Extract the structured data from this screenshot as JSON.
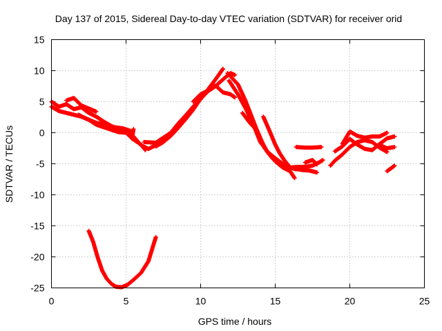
{
  "chart_data": {
    "type": "scatter",
    "title": "Day 137 of 2015, Sidereal Day-to-day VTEC variation (SDTVAR) for receiver orid",
    "xlabel": "GPS time / hours",
    "ylabel": "SDTVAR / TECUs",
    "xlim": [
      0,
      25
    ],
    "ylim": [
      -25,
      15
    ],
    "xticks": [
      0,
      5,
      10,
      15,
      20,
      25
    ],
    "yticks": [
      -25,
      -20,
      -15,
      -10,
      -5,
      0,
      5,
      10,
      15
    ],
    "grid": true,
    "marker": "+",
    "color": "#ff0000",
    "series": [
      {
        "name": "track-a",
        "points": [
          [
            0,
            5
          ],
          [
            0.5,
            4.2
          ],
          [
            1,
            4.6
          ],
          [
            1.5,
            3.8
          ],
          [
            2,
            4.1
          ],
          [
            2.5,
            3.2
          ],
          [
            3,
            2.6
          ],
          [
            3.5,
            1.8
          ],
          [
            4,
            1.1
          ],
          [
            4.5,
            0.6
          ],
          [
            5,
            0.4
          ],
          [
            5.5,
            -0.6
          ],
          [
            6,
            -2
          ],
          [
            6.5,
            -2.6
          ],
          [
            7,
            -2
          ]
        ]
      },
      {
        "name": "track-b",
        "points": [
          [
            0,
            4.2
          ],
          [
            0.5,
            3.5
          ],
          [
            1,
            3.2
          ],
          [
            1.5,
            2.9
          ],
          [
            2,
            2.6
          ],
          [
            2.5,
            2.1
          ],
          [
            3,
            1.3
          ],
          [
            3.5,
            0.9
          ],
          [
            4,
            0.5
          ],
          [
            4.5,
            0.1
          ],
          [
            5,
            0
          ],
          [
            5.5,
            -1.1
          ],
          [
            6,
            -1.9
          ],
          [
            6.3,
            -2.8
          ]
        ]
      },
      {
        "name": "track-c",
        "points": [
          [
            1,
            5.2
          ],
          [
            1.5,
            5.6
          ],
          [
            2,
            4.4
          ],
          [
            2.5,
            3.9
          ],
          [
            3,
            3.4
          ]
        ]
      },
      {
        "name": "track-d",
        "points": [
          [
            1.8,
            2.9
          ],
          [
            2.4,
            2.2
          ],
          [
            3,
            1.6
          ],
          [
            3.6,
            1.3
          ],
          [
            4.2,
            0.9
          ],
          [
            4.8,
            0.7
          ],
          [
            5.3,
            0.3
          ],
          [
            5.4,
            -1
          ],
          [
            5.5,
            0.6
          ]
        ]
      },
      {
        "name": "track-e",
        "points": [
          [
            6.2,
            -1.5
          ],
          [
            7,
            -1.6
          ],
          [
            7.5,
            -0.8
          ],
          [
            8,
            0
          ],
          [
            8.5,
            1.5
          ],
          [
            9,
            2.8
          ],
          [
            9.5,
            4.2
          ],
          [
            10,
            5.4
          ],
          [
            10.5,
            7
          ],
          [
            11,
            8.6
          ],
          [
            11.5,
            10.3
          ]
        ]
      },
      {
        "name": "track-f",
        "points": [
          [
            7,
            -2.2
          ],
          [
            7.5,
            -1.5
          ],
          [
            8,
            -0.5
          ],
          [
            8.5,
            0.8
          ],
          [
            9,
            2.2
          ],
          [
            9.5,
            3.7
          ],
          [
            10,
            5.5
          ],
          [
            10.5,
            6.7
          ],
          [
            11,
            7.5
          ],
          [
            11.5,
            8.6
          ],
          [
            12,
            9.6
          ],
          [
            12.3,
            9.3
          ]
        ]
      },
      {
        "name": "track-g",
        "points": [
          [
            9.5,
            5
          ],
          [
            10,
            6.2
          ],
          [
            10.5,
            6.8
          ],
          [
            11,
            7.6
          ],
          [
            11.5,
            6.5
          ],
          [
            12,
            6.2
          ],
          [
            12.3,
            5.7
          ]
        ]
      },
      {
        "name": "track-h",
        "points": [
          [
            11.8,
            9.6
          ],
          [
            12.5,
            7.8
          ],
          [
            13,
            5.2
          ],
          [
            13.5,
            2.1
          ],
          [
            14,
            -1
          ],
          [
            14.5,
            -3.2
          ],
          [
            15,
            -4.6
          ],
          [
            15.5,
            -5.6
          ],
          [
            16,
            -6.2
          ],
          [
            16.3,
            -7.3
          ]
        ]
      },
      {
        "name": "track-i",
        "points": [
          [
            11.9,
            8.4
          ],
          [
            12.5,
            6.2
          ],
          [
            13,
            4
          ],
          [
            13.5,
            1.5
          ],
          [
            14,
            -1.5
          ],
          [
            14.5,
            -3.1
          ],
          [
            15,
            -4.1
          ],
          [
            15.5,
            -5
          ],
          [
            16,
            -5.6
          ],
          [
            16.5,
            -5.5
          ],
          [
            17,
            -5.5
          ],
          [
            17.5,
            -5.3
          ],
          [
            18,
            -4.7
          ],
          [
            18.2,
            -4.4
          ]
        ]
      },
      {
        "name": "track-j",
        "points": [
          [
            12.8,
            3.2
          ],
          [
            13.3,
            1.6
          ],
          [
            13.8,
            0.3
          ],
          [
            14.3,
            -2.5
          ],
          [
            14.8,
            -4.1
          ],
          [
            15.3,
            -4.9
          ],
          [
            15.8,
            -5.4
          ],
          [
            16.3,
            -5.8
          ],
          [
            16.8,
            -6
          ],
          [
            17.3,
            -6.1
          ],
          [
            17.8,
            -6.4
          ]
        ]
      },
      {
        "name": "track-k",
        "points": [
          [
            14.2,
            2.6
          ],
          [
            14.6,
            0.4
          ],
          [
            15,
            -1.9
          ],
          [
            15.3,
            -3.3
          ],
          [
            15.6,
            -4.4
          ],
          [
            16,
            -5.6
          ],
          [
            16.4,
            -5.9
          ]
        ]
      },
      {
        "name": "track-l",
        "points": [
          [
            16.4,
            -2.3
          ],
          [
            17,
            -2.4
          ],
          [
            17.5,
            -2.4
          ],
          [
            18.1,
            -2.3
          ]
        ]
      },
      {
        "name": "track-m",
        "points": [
          [
            17,
            -4.8
          ],
          [
            17.5,
            -4.4
          ],
          [
            17.8,
            -5.1
          ]
        ]
      },
      {
        "name": "track-n",
        "points": [
          [
            18.7,
            -5.3
          ],
          [
            19,
            -4.5
          ],
          [
            19.5,
            -3.5
          ],
          [
            20,
            -2.3
          ],
          [
            20.5,
            -1.5
          ],
          [
            21,
            -1.2
          ],
          [
            21.5,
            -1.5
          ],
          [
            22,
            -2.4
          ],
          [
            22.5,
            -3.1
          ]
        ]
      },
      {
        "name": "track-o",
        "points": [
          [
            19,
            -3
          ],
          [
            19.5,
            -2.2
          ],
          [
            20,
            -1
          ],
          [
            20.5,
            -1.9
          ],
          [
            21,
            -2.6
          ],
          [
            21.5,
            -2.8
          ],
          [
            22,
            -1.8
          ],
          [
            22.5,
            -0.9
          ],
          [
            23,
            -0.6
          ]
        ]
      },
      {
        "name": "track-p",
        "points": [
          [
            19.5,
            -1.8
          ],
          [
            20,
            0.2
          ],
          [
            20.5,
            -0.5
          ],
          [
            21,
            -0.8
          ],
          [
            21.5,
            -0.6
          ],
          [
            22,
            -0.6
          ],
          [
            22.5,
            0
          ]
        ]
      },
      {
        "name": "track-q",
        "points": [
          [
            22,
            -2
          ],
          [
            22.5,
            -2.5
          ],
          [
            23,
            -2.3
          ]
        ]
      },
      {
        "name": "track-r",
        "points": [
          [
            22.5,
            -6.2
          ],
          [
            23,
            -5.3
          ]
        ]
      },
      {
        "name": "track-s",
        "points": [
          [
            2.5,
            -15.8
          ],
          [
            2.8,
            -17.6
          ],
          [
            3.1,
            -20.1
          ],
          [
            3.4,
            -22.2
          ],
          [
            3.7,
            -23.5
          ],
          [
            4,
            -24.3
          ],
          [
            4.3,
            -24.8
          ],
          [
            4.7,
            -24.9
          ],
          [
            5.1,
            -24.5
          ],
          [
            5.5,
            -23.7
          ],
          [
            6,
            -22.6
          ],
          [
            6.5,
            -20.7
          ],
          [
            7,
            -16.8
          ]
        ]
      }
    ]
  }
}
